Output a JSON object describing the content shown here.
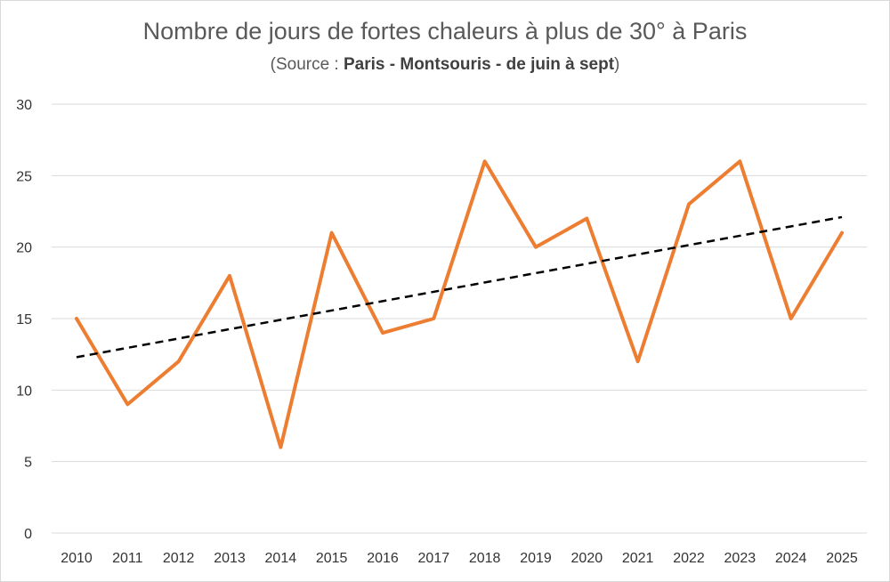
{
  "chart_data": {
    "type": "line",
    "title": "Nombre de jours de fortes chaleurs à plus de 30° à Paris",
    "subtitle_prefix": "(Source : ",
    "subtitle_bold": "Paris - Montsouris - de juin à sept",
    "subtitle_suffix": ")",
    "categories": [
      "2010",
      "2011",
      "2012",
      "2013",
      "2014",
      "2015",
      "2016",
      "2017",
      "2018",
      "2019",
      "2020",
      "2021",
      "2022",
      "2023",
      "2024",
      "2025"
    ],
    "series": [
      {
        "values": [
          15,
          9,
          12,
          18,
          6,
          21,
          14,
          15,
          26,
          20,
          22,
          12,
          23,
          26,
          15,
          21
        ],
        "color": "#ED7D31"
      }
    ],
    "trendline": {
      "type": "linear",
      "style": "dashed",
      "color": "#000000",
      "start": 12.3,
      "end": 22.1
    },
    "y_ticks": [
      "0",
      "5",
      "10",
      "15",
      "20",
      "25",
      "30"
    ],
    "ylim": [
      0,
      30
    ],
    "grid": true,
    "legend": "none"
  }
}
